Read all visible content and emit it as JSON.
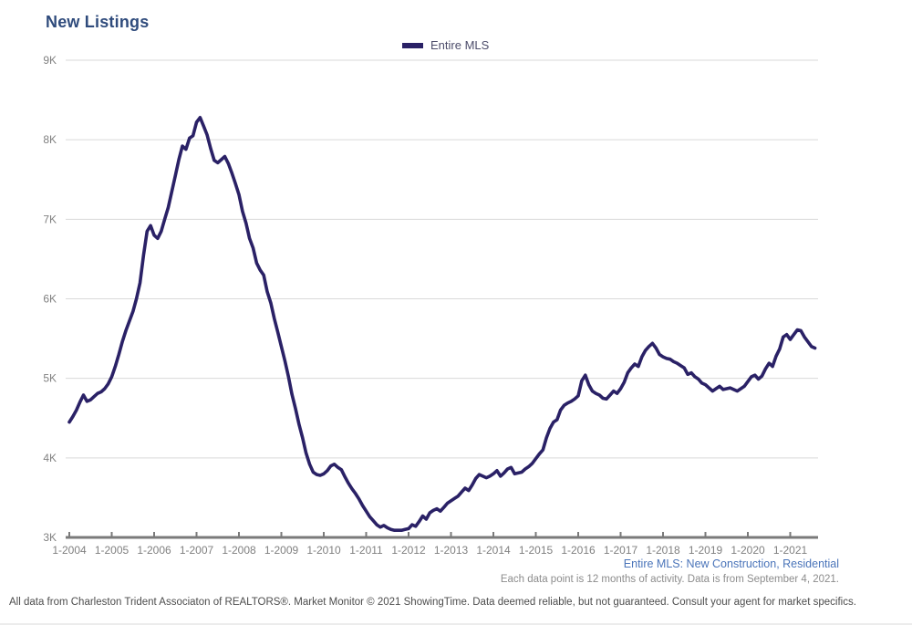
{
  "header": {
    "title": "New Listings"
  },
  "notes": {
    "series_scope": "Entire MLS: New Construction, Residential",
    "data_note": "Each data point is 12 months of activity. Data is from September 4, 2021.",
    "disclaimer": "All data from Charleston Trident Associaton of REALTORS®. Market Monitor © 2021 ShowingTime. Data deemed reliable, but not guaranteed. Consult your agent for market specifics."
  },
  "colors": {
    "title": "#2f4b7c",
    "series_line": "#2a2166",
    "legend_text": "#4d4d6b",
    "subtitle_blue": "#4a74b9",
    "axis_text": "#808080",
    "gridline": "#d9d9d9",
    "axis_line": "#7a7a7a"
  },
  "chart_data": {
    "type": "line",
    "title": "New Listings",
    "legend": {
      "label": "Entire MLS",
      "position": "top-center"
    },
    "grid": "horizontal",
    "ylim": [
      3000,
      9000
    ],
    "y_ticks": [
      {
        "label": "9K",
        "value": 9000
      },
      {
        "label": "8K",
        "value": 8000
      },
      {
        "label": "7K",
        "value": 7000
      },
      {
        "label": "6K",
        "value": 6000
      },
      {
        "label": "5K",
        "value": 5000
      },
      {
        "label": "4K",
        "value": 4000
      },
      {
        "label": "3K",
        "value": 3000
      }
    ],
    "x_tick_labels": [
      "1-2004",
      "1-2005",
      "1-2006",
      "1-2007",
      "1-2008",
      "1-2009",
      "1-2010",
      "1-2011",
      "1-2012",
      "1-2013",
      "1-2014",
      "1-2015",
      "1-2016",
      "1-2017",
      "1-2018",
      "1-2019",
      "1-2020",
      "1-2021"
    ],
    "x_start": "1-2004",
    "x_interval": "month",
    "series": [
      {
        "name": "Entire MLS",
        "color": "#2a2166",
        "values": [
          4450,
          4520,
          4600,
          4700,
          4790,
          4710,
          4730,
          4770,
          4810,
          4830,
          4870,
          4930,
          5020,
          5150,
          5300,
          5460,
          5600,
          5720,
          5840,
          6000,
          6200,
          6550,
          6850,
          6920,
          6800,
          6760,
          6850,
          7000,
          7150,
          7350,
          7550,
          7750,
          7920,
          7880,
          8020,
          8050,
          8220,
          8280,
          8170,
          8060,
          7890,
          7740,
          7710,
          7750,
          7790,
          7700,
          7580,
          7450,
          7310,
          7100,
          6950,
          6760,
          6640,
          6450,
          6360,
          6300,
          6090,
          5950,
          5750,
          5580,
          5400,
          5220,
          5020,
          4800,
          4620,
          4420,
          4250,
          4060,
          3920,
          3820,
          3790,
          3780,
          3800,
          3840,
          3900,
          3920,
          3880,
          3850,
          3760,
          3680,
          3610,
          3550,
          3480,
          3400,
          3330,
          3260,
          3210,
          3160,
          3130,
          3150,
          3120,
          3100,
          3090,
          3090,
          3090,
          3100,
          3110,
          3160,
          3140,
          3200,
          3270,
          3230,
          3310,
          3340,
          3360,
          3330,
          3380,
          3430,
          3460,
          3490,
          3520,
          3570,
          3620,
          3590,
          3660,
          3740,
          3790,
          3770,
          3750,
          3770,
          3800,
          3840,
          3770,
          3810,
          3860,
          3880,
          3800,
          3810,
          3820,
          3860,
          3890,
          3930,
          3990,
          4050,
          4100,
          4250,
          4370,
          4450,
          4480,
          4600,
          4660,
          4690,
          4710,
          4740,
          4780,
          4970,
          5040,
          4920,
          4840,
          4810,
          4790,
          4750,
          4740,
          4790,
          4840,
          4810,
          4870,
          4950,
          5070,
          5130,
          5180,
          5150,
          5270,
          5350,
          5400,
          5440,
          5380,
          5300,
          5270,
          5250,
          5240,
          5210,
          5190,
          5160,
          5130,
          5050,
          5070,
          5020,
          4990,
          4940,
          4920,
          4880,
          4840,
          4870,
          4900,
          4860,
          4870,
          4880,
          4860,
          4840,
          4870,
          4900,
          4960,
          5020,
          5040,
          4990,
          5030,
          5120,
          5190,
          5150,
          5280,
          5370,
          5520,
          5550,
          5490,
          5550,
          5610,
          5600,
          5520,
          5460,
          5400,
          5380
        ]
      }
    ]
  }
}
